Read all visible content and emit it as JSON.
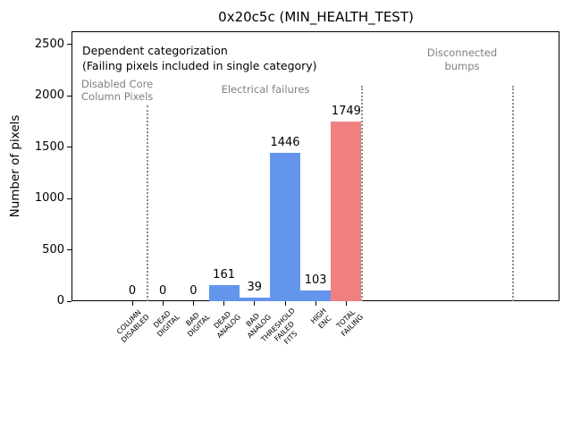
{
  "title": "0x20c5c (MIN_HEALTH_TEST)",
  "ylabel": "Number of pixels",
  "annotations": {
    "line1": "Dependent categorization",
    "line2": "(Failing pixels included in single category)"
  },
  "sections": {
    "disabled_core": "Disabled Core\nColumn Pixels",
    "electrical": "Electrical failures",
    "disconnected": "Disconnected\nbumps"
  },
  "chart_data": {
    "type": "bar",
    "title": "0x20c5c (MIN_HEALTH_TEST)",
    "xlabel": "",
    "ylabel": "Number of pixels",
    "categories": [
      "COLUMN DISABLED",
      "DEAD DIGITAL",
      "BAD DIGITAL",
      "DEAD ANALOG",
      "BAD ANALOG",
      "THRESHOLD FAILED FITS",
      "HIGH ENC",
      "TOTAL FAILING"
    ],
    "category_lines": [
      [
        "COLUMN",
        "DISABLED"
      ],
      [
        "DEAD",
        "DIGITAL"
      ],
      [
        "BAD",
        "DIGITAL"
      ],
      [
        "DEAD",
        "ANALOG"
      ],
      [
        "BAD",
        "ANALOG"
      ],
      [
        "THRESHOLD",
        "FAILED",
        "FITS"
      ],
      [
        "HIGH",
        "ENC"
      ],
      [
        "TOTAL",
        "FAILING"
      ]
    ],
    "values": [
      0,
      0,
      0,
      161,
      39,
      1446,
      103,
      1749
    ],
    "value_labels": [
      "0",
      "0",
      "0",
      "161",
      "39",
      "1446",
      "103",
      "1749"
    ],
    "bar_colors": [
      "#6495ED",
      "#6495ED",
      "#6495ED",
      "#6495ED",
      "#6495ED",
      "#6495ED",
      "#6495ED",
      "#F08080"
    ],
    "yticks": [
      0,
      500,
      1000,
      1500,
      2000,
      2500
    ],
    "ylim": [
      0,
      2630
    ],
    "grid": false,
    "legend": null,
    "annotations": [
      "Dependent categorization",
      "(Failing pixels included in single category)"
    ],
    "section_labels": [
      "Disabled Core\nColumn Pixels",
      "Electrical failures",
      "Disconnected\nbumps"
    ],
    "colors": {
      "bar_blue": "#6495ED",
      "bar_red": "#F08080",
      "section_text": "#808080",
      "divider": "#8a8a8a",
      "axis": "#000000"
    }
  }
}
